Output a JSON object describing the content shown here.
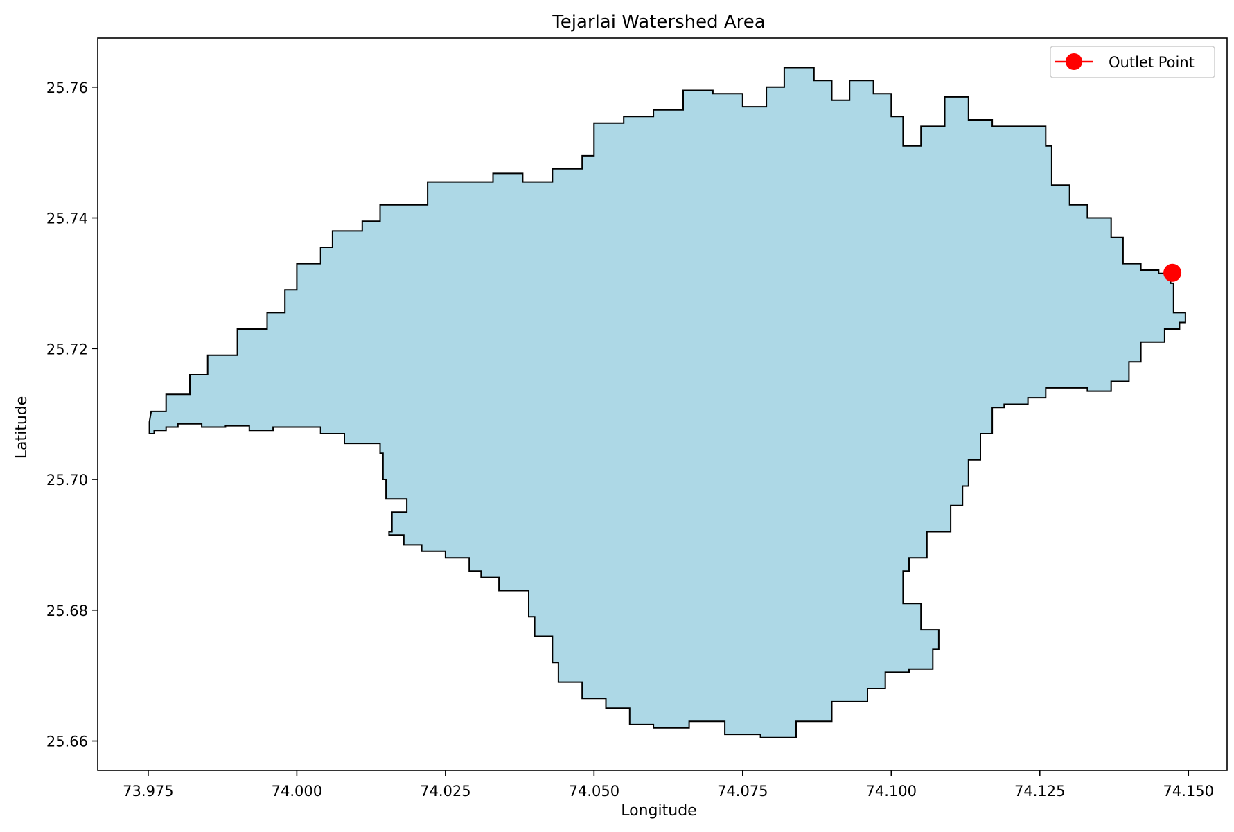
{
  "chart_data": {
    "type": "map",
    "title": "Tejarlai Watershed Area",
    "xlabel": "Longitude",
    "ylabel": "Latitude",
    "xlim": [
      73.9665,
      74.1565
    ],
    "ylim": [
      25.6555,
      25.7675
    ],
    "xticks": [
      73.975,
      74.0,
      74.025,
      74.05,
      74.075,
      74.1,
      74.125,
      74.15
    ],
    "xtick_labels": [
      "73.975",
      "74.000",
      "74.025",
      "74.050",
      "74.075",
      "74.100",
      "74.125",
      "74.150"
    ],
    "yticks": [
      25.66,
      25.68,
      25.7,
      25.72,
      25.74,
      25.76
    ],
    "ytick_labels": [
      "25.66",
      "25.68",
      "25.70",
      "25.72",
      "25.74",
      "25.76"
    ],
    "grid": false,
    "legend_position": "top-right",
    "legend": [
      {
        "label": "Outlet Point",
        "color": "#ff0000",
        "marker": "circle"
      }
    ],
    "watershed": {
      "fill_color": "#add8e6",
      "edge_color": "#000000",
      "boundary": [
        [
          73.9755,
          25.7104
        ],
        [
          73.978,
          25.713
        ],
        [
          73.982,
          25.716
        ],
        [
          73.985,
          25.719
        ],
        [
          73.99,
          25.723
        ],
        [
          73.995,
          25.7255
        ],
        [
          73.998,
          25.729
        ],
        [
          74.0,
          25.733
        ],
        [
          74.004,
          25.7355
        ],
        [
          74.006,
          25.738
        ],
        [
          74.011,
          25.7395
        ],
        [
          74.014,
          25.742
        ],
        [
          74.018,
          25.742
        ],
        [
          74.022,
          25.7455
        ],
        [
          74.027,
          25.7455
        ],
        [
          74.033,
          25.7468
        ],
        [
          74.038,
          25.7455
        ],
        [
          74.043,
          25.7475
        ],
        [
          74.048,
          25.7495
        ],
        [
          74.05,
          25.7545
        ],
        [
          74.055,
          25.7555
        ],
        [
          74.06,
          25.7565
        ],
        [
          74.065,
          25.7595
        ],
        [
          74.07,
          25.759
        ],
        [
          74.075,
          25.757
        ],
        [
          74.079,
          25.76
        ],
        [
          74.082,
          25.763
        ],
        [
          74.087,
          25.761
        ],
        [
          74.09,
          25.758
        ],
        [
          74.093,
          25.761
        ],
        [
          74.097,
          25.759
        ],
        [
          74.1,
          25.7555
        ],
        [
          74.102,
          25.751
        ],
        [
          74.105,
          25.754
        ],
        [
          74.109,
          25.7585
        ],
        [
          74.113,
          25.755
        ],
        [
          74.117,
          25.754
        ],
        [
          74.123,
          25.754
        ],
        [
          74.126,
          25.751
        ],
        [
          74.127,
          25.745
        ],
        [
          74.13,
          25.742
        ],
        [
          74.133,
          25.74
        ],
        [
          74.137,
          25.737
        ],
        [
          74.139,
          25.733
        ],
        [
          74.142,
          25.732
        ],
        [
          74.145,
          25.7315
        ],
        [
          74.147,
          25.73
        ],
        [
          74.1475,
          25.7255
        ],
        [
          74.1495,
          25.724
        ],
        [
          74.1485,
          25.723
        ],
        [
          74.146,
          25.721
        ],
        [
          74.142,
          25.718
        ],
        [
          74.14,
          25.715
        ],
        [
          74.137,
          25.7135
        ],
        [
          74.133,
          25.714
        ],
        [
          74.129,
          25.714
        ],
        [
          74.126,
          25.7125
        ],
        [
          74.123,
          25.7115
        ],
        [
          74.119,
          25.711
        ],
        [
          74.117,
          25.707
        ],
        [
          74.115,
          25.703
        ],
        [
          74.113,
          25.699
        ],
        [
          74.112,
          25.696
        ],
        [
          74.11,
          25.692
        ],
        [
          74.106,
          25.688
        ],
        [
          74.103,
          25.686
        ],
        [
          74.102,
          25.681
        ],
        [
          74.105,
          25.677
        ],
        [
          74.108,
          25.674
        ],
        [
          74.107,
          25.671
        ],
        [
          74.103,
          25.6705
        ],
        [
          74.099,
          25.668
        ],
        [
          74.096,
          25.666
        ],
        [
          74.09,
          25.663
        ],
        [
          74.084,
          25.6605
        ],
        [
          74.078,
          25.661
        ],
        [
          74.072,
          25.663
        ],
        [
          74.066,
          25.662
        ],
        [
          74.06,
          25.6625
        ],
        [
          74.056,
          25.665
        ],
        [
          74.052,
          25.6665
        ],
        [
          74.048,
          25.669
        ],
        [
          74.044,
          25.672
        ],
        [
          74.043,
          25.676
        ],
        [
          74.04,
          25.679
        ],
        [
          74.039,
          25.683
        ],
        [
          74.034,
          25.685
        ],
        [
          74.031,
          25.686
        ],
        [
          74.029,
          25.688
        ],
        [
          74.025,
          25.689
        ],
        [
          74.021,
          25.69
        ],
        [
          74.018,
          25.6915
        ],
        [
          74.0155,
          25.692
        ],
        [
          74.016,
          25.695
        ],
        [
          74.0185,
          25.697
        ],
        [
          74.015,
          25.7
        ],
        [
          74.0145,
          25.704
        ],
        [
          74.014,
          25.7055
        ],
        [
          74.009,
          25.7055
        ],
        [
          74.008,
          25.707
        ],
        [
          74.004,
          25.708
        ],
        [
          74.0,
          25.708
        ],
        [
          73.996,
          25.7075
        ],
        [
          73.992,
          25.7082
        ],
        [
          73.988,
          25.708
        ],
        [
          73.984,
          25.7085
        ],
        [
          73.98,
          25.708
        ],
        [
          73.978,
          25.7075
        ],
        [
          73.976,
          25.707
        ],
        [
          73.9752,
          25.7088
        ]
      ]
    },
    "outlet_point": {
      "label": "Outlet Point",
      "x": 74.1473,
      "y": 25.7316,
      "color": "#ff0000"
    }
  }
}
